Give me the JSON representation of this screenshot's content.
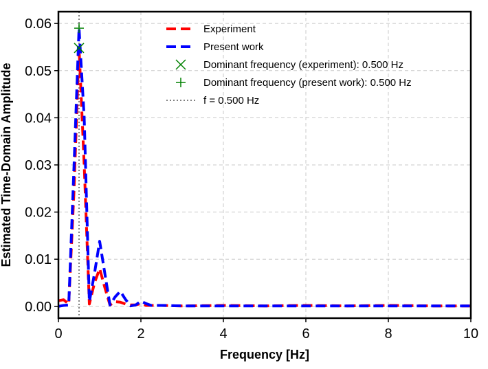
{
  "chart_data": {
    "type": "line",
    "title": "",
    "xlabel": "Frequency [Hz]",
    "ylabel": "Estimated Time-Domain Amplitude",
    "xlim": [
      0,
      10
    ],
    "ylim": [
      -0.0025,
      0.0625
    ],
    "xticks": [
      0,
      2,
      4,
      6,
      8,
      10
    ],
    "xtick_labels": [
      "0",
      "2",
      "4",
      "6",
      "8",
      "10"
    ],
    "yticks": [
      0.0,
      0.01,
      0.02,
      0.03,
      0.04,
      0.05,
      0.06
    ],
    "ytick_labels": [
      "0.00",
      "0.01",
      "0.02",
      "0.03",
      "0.04",
      "0.05",
      "0.06"
    ],
    "grid": true,
    "legend_position": "top-right",
    "series": [
      {
        "name": "Experiment",
        "style": "dashed",
        "color": "#ff0000",
        "x": [
          0,
          0.125,
          0.25,
          0.375,
          0.5,
          0.625,
          0.75,
          0.875,
          1.0,
          1.125,
          1.25,
          1.375,
          1.5,
          1.625,
          1.75,
          1.875,
          2.0,
          2.125,
          2.25,
          2.5,
          3.0,
          4.0,
          5.0,
          6.0,
          7.0,
          8.0,
          9.0,
          10.0
        ],
        "y": [
          0.0012,
          0.0014,
          0.0005,
          0.024,
          0.0548,
          0.03,
          0.0005,
          0.005,
          0.008,
          0.004,
          0.0003,
          0.001,
          0.0009,
          0.0005,
          0.0003,
          0.0003,
          0.0006,
          0.0002,
          0.0002,
          0.0002,
          0.0001,
          0.0002,
          0.0001,
          0.0002,
          0.0001,
          0.0002,
          0.0001,
          0.0001
        ]
      },
      {
        "name": "Present work",
        "style": "dashed",
        "color": "#0000ff",
        "x": [
          0,
          0.125,
          0.25,
          0.375,
          0.5,
          0.625,
          0.75,
          0.875,
          1.0,
          1.125,
          1.25,
          1.375,
          1.5,
          1.625,
          1.75,
          1.875,
          2.0,
          2.125,
          2.25,
          2.5,
          3.0,
          4.0,
          5.0,
          6.0,
          7.0,
          8.0,
          9.0,
          10.0
        ],
        "y": [
          0.0,
          0.0002,
          0.0003,
          0.029,
          0.059,
          0.04,
          0.001,
          0.007,
          0.0138,
          0.007,
          0.0003,
          0.002,
          0.0032,
          0.0015,
          0.0001,
          0.0003,
          0.0011,
          0.0006,
          0.0002,
          0.0002,
          0.0001,
          0.0001,
          0.0001,
          0.0001,
          0.0001,
          0.0001,
          0.0001,
          0.0001
        ]
      }
    ],
    "markers": [
      {
        "name": "Dominant frequency (experiment): 0.500 Hz",
        "symbol": "x",
        "color": "#008000",
        "x": 0.5,
        "y": 0.0548
      },
      {
        "name": "Dominant frequency (present work): 0.500 Hz",
        "symbol": "+",
        "color": "#008000",
        "x": 0.5,
        "y": 0.059
      }
    ],
    "vlines": [
      {
        "name": "f = 0.500 Hz",
        "style": "dotted",
        "color": "#808080",
        "x": 0.5
      }
    ]
  }
}
